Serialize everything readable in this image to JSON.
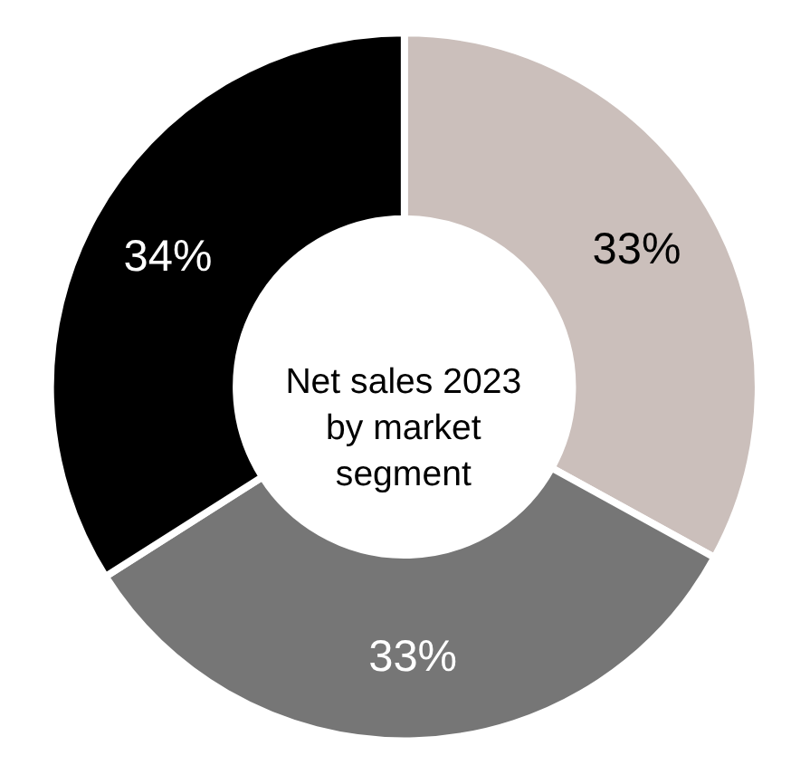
{
  "chart_data": {
    "type": "donut",
    "title": "Net sales 2023\nby market\nsegment",
    "categories": [
      null,
      null,
      null
    ],
    "values": [
      33,
      33,
      34
    ],
    "colors": [
      "#cbbfbb",
      "#767676",
      "#000000"
    ],
    "value_labels": [
      "33%",
      "33%",
      "34%"
    ],
    "legend": false
  }
}
